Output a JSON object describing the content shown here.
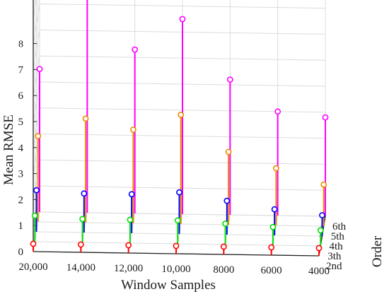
{
  "chart_data": {
    "type": "stem3d",
    "xlabel": "Window Samples",
    "ylabel": "Order",
    "zlabel": "Mean RMSE",
    "x_categories": [
      "20,000",
      "14,000",
      "12,000",
      "10,000",
      "8000",
      "6000",
      "4000"
    ],
    "y_categories": [
      "2nd",
      "3th",
      "4th",
      "5th",
      "6th"
    ],
    "z_ticks": [
      "0",
      "1",
      "2",
      "3",
      "4",
      "5",
      "6",
      "7",
      "8"
    ],
    "zlim": [
      0,
      8
    ],
    "grid": true,
    "series": [
      {
        "order": "2nd",
        "color": "#ff0000",
        "values": [
          0.3,
          0.3,
          0.3,
          0.3,
          0.3,
          0.3,
          0.3
        ]
      },
      {
        "order": "3th",
        "color": "#00dd00",
        "values": [
          1.0,
          0.9,
          0.9,
          0.9,
          0.8,
          0.7,
          0.6
        ]
      },
      {
        "order": "4th",
        "color": "#0000ff",
        "values": [
          1.6,
          1.5,
          1.5,
          1.6,
          1.3,
          1.0,
          0.8
        ]
      },
      {
        "order": "5th",
        "color": "#ee8800",
        "values": [
          3.3,
          4.0,
          3.6,
          4.2,
          2.8,
          2.2,
          1.6
        ]
      },
      {
        "order": "6th",
        "color": "#ff00ff",
        "values": [
          5.5,
          8.7,
          6.3,
          7.5,
          5.2,
          4.0,
          3.8
        ]
      }
    ]
  }
}
